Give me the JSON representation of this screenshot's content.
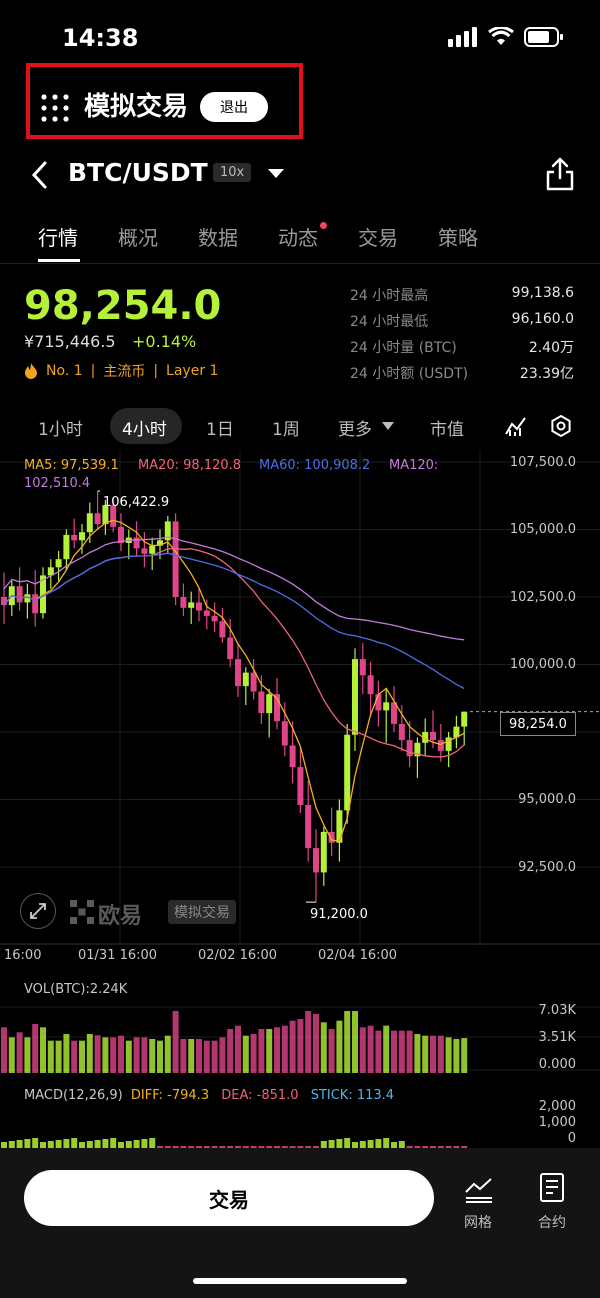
{
  "status_bar": {
    "time": "14:38"
  },
  "demo": {
    "title": "模拟交易",
    "exit_label": "退出"
  },
  "pair": {
    "name": "BTC/USDT",
    "leverage": "10x"
  },
  "tabs": [
    "行情",
    "概况",
    "数据",
    "动态",
    "交易",
    "策略"
  ],
  "price": {
    "last": "98,254.0",
    "cny": "¥715,446.5",
    "change": "+0.14%",
    "rank": "No. 1",
    "tag1": "主流币",
    "tag2": "Layer 1"
  },
  "stats": [
    {
      "label": "24 小时最高",
      "value": "99,138.6"
    },
    {
      "label": "24 小时最低",
      "value": "96,160.0"
    },
    {
      "label": "24 小时量 (BTC)",
      "value": "2.40万"
    },
    {
      "label": "24 小时额 (USDT)",
      "value": "23.39亿"
    }
  ],
  "timeframes": [
    "1小时",
    "4小时",
    "1日",
    "1周",
    "更多",
    "市值"
  ],
  "ma_legend": {
    "ma5": "MA5: 97,539.1",
    "ma20": "MA20: 98,120.8",
    "ma60": "MA60: 100,908.2",
    "ma120a": "MA120:",
    "ma120b": "102,510.4",
    "colors": {
      "ma5": "#f5b120",
      "ma20": "#f06477",
      "ma60": "#4b6ee8",
      "ma120": "#c27bd8"
    }
  },
  "chart": {
    "y_labels": [
      "107,500.0",
      "105,000.0",
      "102,500.0",
      "100,000.0",
      "95,000.0",
      "92,500.0"
    ],
    "x_labels": [
      "16:00",
      "01/31 16:00",
      "02/02 16:00",
      "02/04 16:00"
    ],
    "high_annotation": "106,422.9",
    "low_annotation": "91,200.0",
    "price_tag": "98,254.0",
    "watermark_brand": "欧易",
    "watermark_tag": "模拟交易",
    "up_color": "#b6f13a",
    "down_color": "#e0458a"
  },
  "chart_data": {
    "type": "candlestick",
    "ylim": [
      91000,
      107500
    ],
    "candles": [
      [
        102500,
        103400,
        101500,
        102200
      ],
      [
        102200,
        103100,
        101800,
        102900
      ],
      [
        102900,
        103600,
        102000,
        102300
      ],
      [
        102300,
        103000,
        101700,
        102600
      ],
      [
        102600,
        103500,
        101400,
        101900
      ],
      [
        101900,
        103600,
        101700,
        103300
      ],
      [
        103300,
        103900,
        102800,
        103600
      ],
      [
        103600,
        104200,
        103100,
        103900
      ],
      [
        103900,
        105000,
        103500,
        104800
      ],
      [
        104800,
        105400,
        104300,
        104600
      ],
      [
        104600,
        105200,
        104100,
        104900
      ],
      [
        104900,
        106000,
        104500,
        105600
      ],
      [
        105600,
        106422.9,
        105000,
        105200
      ],
      [
        105200,
        106100,
        104800,
        105900
      ],
      [
        105900,
        106200,
        104900,
        105100
      ],
      [
        105100,
        105600,
        104200,
        104500
      ],
      [
        104500,
        105000,
        103900,
        104700
      ],
      [
        104700,
        105300,
        104000,
        104300
      ],
      [
        104300,
        104900,
        103600,
        104100
      ],
      [
        104100,
        104700,
        103500,
        104400
      ],
      [
        104400,
        105000,
        103900,
        104600
      ],
      [
        104600,
        105500,
        104100,
        105300
      ],
      [
        105300,
        105600,
        102200,
        102500
      ],
      [
        102500,
        103000,
        101800,
        102100
      ],
      [
        102100,
        102700,
        101500,
        102300
      ],
      [
        102300,
        102800,
        101600,
        102000
      ],
      [
        102000,
        102400,
        101300,
        101800
      ],
      [
        101800,
        102300,
        101200,
        101600
      ],
      [
        101600,
        102100,
        100800,
        101000
      ],
      [
        101000,
        101700,
        99900,
        100200
      ],
      [
        100200,
        100800,
        98800,
        99200
      ],
      [
        99200,
        99900,
        98500,
        99700
      ],
      [
        99700,
        100200,
        98700,
        99000
      ],
      [
        99000,
        99600,
        97800,
        98200
      ],
      [
        98200,
        99100,
        97300,
        98900
      ],
      [
        98900,
        99500,
        97600,
        97900
      ],
      [
        97900,
        98600,
        96600,
        97000
      ],
      [
        97000,
        97900,
        95600,
        96200
      ],
      [
        96200,
        96900,
        94500,
        94800
      ],
      [
        94800,
        95700,
        92700,
        93200
      ],
      [
        93200,
        93900,
        91200,
        92300
      ],
      [
        92300,
        94000,
        91800,
        93800
      ],
      [
        93800,
        94700,
        92900,
        93400
      ],
      [
        93400,
        95000,
        92700,
        94600
      ],
      [
        94600,
        97800,
        94100,
        97400
      ],
      [
        97400,
        100600,
        96800,
        100200
      ],
      [
        100200,
        100800,
        98900,
        99600
      ],
      [
        99600,
        100100,
        98100,
        98900
      ],
      [
        98900,
        99400,
        97700,
        98300
      ],
      [
        98300,
        99100,
        97100,
        98600
      ],
      [
        98600,
        99200,
        97500,
        97800
      ],
      [
        97800,
        98500,
        96800,
        97200
      ],
      [
        97200,
        97900,
        96200,
        96600
      ],
      [
        96600,
        97300,
        95800,
        97100
      ],
      [
        97100,
        98000,
        96600,
        97500
      ],
      [
        97500,
        98300,
        96900,
        97200
      ],
      [
        97200,
        97800,
        96400,
        96800
      ],
      [
        96800,
        97500,
        96200,
        97300
      ],
      [
        97300,
        98100,
        96900,
        97700
      ],
      [
        97700,
        98254.0,
        97000,
        98254.0
      ]
    ],
    "volume_axis": [
      "7.03K",
      "3.51K",
      "0.000"
    ],
    "volume_label": "VOL(BTC):2.24K",
    "macd_label": "MACD(12,26,9)",
    "macd_diff": "DIFF: -794.3",
    "macd_dea": "DEA: -851.0",
    "macd_stick": "STICK: 113.4",
    "macd_axis": [
      "2,000",
      "1,000",
      "0"
    ]
  },
  "bottom": {
    "trade_label": "交易",
    "grid_label": "网格",
    "contract_label": "合约"
  }
}
